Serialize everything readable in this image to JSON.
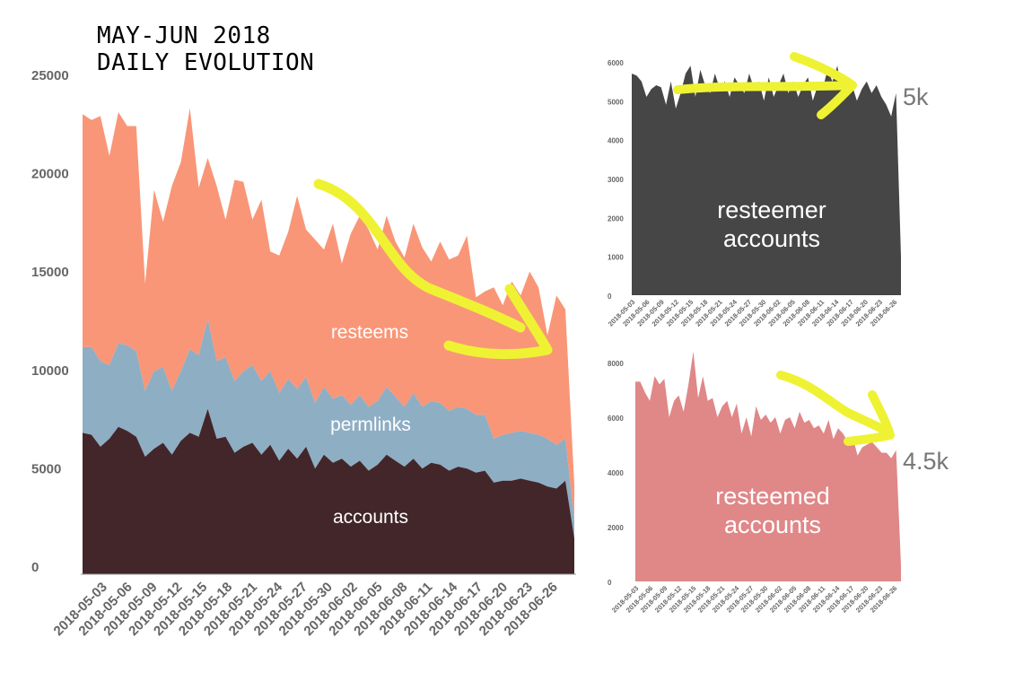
{
  "title": {
    "line1": "MAY-JUN 2018",
    "line2": "DAILY EVOLUTION"
  },
  "colors": {
    "resteems": "#f99677",
    "permlinks": "#8eaec4",
    "accounts": "#42262a",
    "resteemer": "#464646",
    "resteemed": "#e08788",
    "arrow": "#eef233",
    "overlay_text": "#ffffff",
    "side_text": "#777777"
  },
  "main_labels": {
    "resteems": "resteems",
    "permlinks": "permlinks",
    "accounts": "accounts"
  },
  "small_labels": {
    "resteemer_line1": "resteemer",
    "resteemer_line2": "accounts",
    "resteemed_line1": "resteemed",
    "resteemed_line2": "accounts"
  },
  "annotations": {
    "resteemer_value": "5k",
    "resteemed_value": "4.5k"
  },
  "chart_data": [
    {
      "type": "area",
      "stacked": true,
      "title": "",
      "ylim": [
        0,
        25000
      ],
      "y_ticks": [
        "0",
        "5000",
        "10000",
        "15000",
        "20000",
        "25000"
      ],
      "x_tick_labels": [
        "2018-05-03",
        "2018-05-06",
        "2018-05-09",
        "2018-05-12",
        "2018-05-15",
        "2018-05-18",
        "2018-05-21",
        "2018-05-24",
        "2018-05-27",
        "2018-05-30",
        "2018-06-02",
        "2018-06-05",
        "2018-06-08",
        "2018-06-11",
        "2018-06-14",
        "2018-06-17",
        "2018-06-20",
        "2018-06-23",
        "2018-06-26"
      ],
      "x": [
        "2018-05-03",
        "2018-05-04",
        "2018-05-05",
        "2018-05-06",
        "2018-05-07",
        "2018-05-08",
        "2018-05-09",
        "2018-05-10",
        "2018-05-11",
        "2018-05-12",
        "2018-05-13",
        "2018-05-14",
        "2018-05-15",
        "2018-05-16",
        "2018-05-17",
        "2018-05-18",
        "2018-05-19",
        "2018-05-20",
        "2018-05-21",
        "2018-05-22",
        "2018-05-23",
        "2018-05-24",
        "2018-05-25",
        "2018-05-26",
        "2018-05-27",
        "2018-05-28",
        "2018-05-29",
        "2018-05-30",
        "2018-05-31",
        "2018-06-01",
        "2018-06-02",
        "2018-06-03",
        "2018-06-04",
        "2018-06-05",
        "2018-06-06",
        "2018-06-07",
        "2018-06-08",
        "2018-06-09",
        "2018-06-10",
        "2018-06-11",
        "2018-06-12",
        "2018-06-13",
        "2018-06-14",
        "2018-06-15",
        "2018-06-16",
        "2018-06-17",
        "2018-06-18",
        "2018-06-19",
        "2018-06-20",
        "2018-06-21",
        "2018-06-22",
        "2018-06-23",
        "2018-06-24",
        "2018-06-25",
        "2018-06-26",
        "2018-06-27"
      ],
      "series": [
        {
          "name": "accounts",
          "values": [
            7100,
            7000,
            6400,
            6800,
            7400,
            7200,
            6900,
            5900,
            6300,
            6600,
            6000,
            6700,
            7100,
            6900,
            8300,
            6800,
            6900,
            6100,
            6400,
            6600,
            6000,
            6500,
            5700,
            6300,
            5800,
            6400,
            5300,
            6000,
            5600,
            5800,
            5400,
            5700,
            5200,
            5500,
            6000,
            5700,
            5400,
            5800,
            5300,
            5600,
            5500,
            5200,
            5400,
            5300,
            5100,
            5200,
            4600,
            4700,
            4700,
            4800,
            4700,
            4600,
            4400,
            4300,
            4700,
            1800
          ]
        },
        {
          "name": "permlinks",
          "values": [
            11400,
            11400,
            10700,
            10500,
            11600,
            11500,
            11200,
            9200,
            10200,
            10400,
            9200,
            10200,
            11300,
            11000,
            12800,
            10700,
            10900,
            9700,
            10200,
            10500,
            9700,
            10200,
            9100,
            9800,
            9300,
            9900,
            8600,
            9400,
            8800,
            9000,
            8500,
            9000,
            8400,
            8700,
            9400,
            8900,
            8400,
            9100,
            8400,
            8700,
            8600,
            8200,
            8400,
            8300,
            8000,
            8000,
            6800,
            7000,
            7100,
            7200,
            7100,
            7000,
            6800,
            6500,
            6800,
            2700
          ]
        },
        {
          "name": "resteems",
          "values": [
            23100,
            22800,
            23000,
            21000,
            23200,
            22500,
            22500,
            14600,
            19300,
            17700,
            19500,
            20700,
            23400,
            19400,
            20900,
            19500,
            17800,
            19800,
            19700,
            17800,
            18800,
            16200,
            16000,
            17200,
            19000,
            17300,
            16800,
            16300,
            17600,
            15600,
            17100,
            18000,
            17300,
            16300,
            18000,
            16700,
            15900,
            17600,
            16400,
            15700,
            16700,
            15800,
            16000,
            17000,
            13900,
            14200,
            14400,
            13500,
            14700,
            14000,
            15200,
            14400,
            12000,
            14000,
            13300,
            4500
          ]
        }
      ]
    },
    {
      "type": "area",
      "title": "",
      "ylim": [
        0,
        6000
      ],
      "y_ticks": [
        "0",
        "1000",
        "2000",
        "3000",
        "4000",
        "5000",
        "6000"
      ],
      "x_tick_labels": [
        "2018-05-03",
        "2018-05-06",
        "2018-05-09",
        "2018-05-12",
        "2018-05-15",
        "2018-05-18",
        "2018-05-21",
        "2018-05-24",
        "2018-05-27",
        "2018-05-30",
        "2018-06-02",
        "2018-06-05",
        "2018-06-08",
        "2018-06-11",
        "2018-06-14",
        "2018-06-17",
        "2018-06-20",
        "2018-06-23",
        "2018-06-26"
      ],
      "series": [
        {
          "name": "resteemer accounts",
          "values": [
            5700,
            5650,
            5500,
            5100,
            5300,
            5400,
            5350,
            4900,
            5500,
            4800,
            5200,
            5700,
            5900,
            5100,
            5800,
            5400,
            5200,
            5700,
            5300,
            5500,
            5100,
            5600,
            5400,
            5200,
            5700,
            5300,
            5500,
            5000,
            5600,
            5100,
            5400,
            5700,
            5200,
            5500,
            5100,
            5400,
            5600,
            5000,
            5400,
            5300,
            5800,
            5500,
            5900,
            5200,
            5600,
            5400,
            5000,
            5300,
            5500,
            5200,
            5400,
            5100,
            4900,
            4600,
            5200,
            1000
          ]
        }
      ]
    },
    {
      "type": "area",
      "title": "",
      "ylim": [
        0,
        8000
      ],
      "y_ticks": [
        "0",
        "2000",
        "4000",
        "6000",
        "8000"
      ],
      "x_tick_labels": [
        "2018-05-03",
        "2018-05-06",
        "2018-05-09",
        "2018-05-12",
        "2018-05-15",
        "2018-05-18",
        "2018-05-21",
        "2018-05-24",
        "2018-05-27",
        "2018-05-30",
        "2018-06-02",
        "2018-06-05",
        "2018-06-08",
        "2018-06-11",
        "2018-06-14",
        "2018-06-17",
        "2018-06-20",
        "2018-06-23",
        "2018-06-26"
      ],
      "series": [
        {
          "name": "resteemed accounts",
          "values": [
            7300,
            7300,
            6900,
            6600,
            7500,
            7200,
            7400,
            6000,
            6600,
            6800,
            6200,
            7200,
            8400,
            6700,
            7500,
            6600,
            6700,
            6000,
            6400,
            6600,
            6000,
            6500,
            5400,
            6000,
            5300,
            6400,
            5900,
            6100,
            5800,
            6000,
            5400,
            5900,
            6000,
            5600,
            6200,
            5800,
            5900,
            5600,
            5700,
            5400,
            5900,
            5200,
            5600,
            5400,
            5100,
            5300,
            4600,
            4900,
            5000,
            5100,
            4900,
            4700,
            4700,
            4500,
            4800,
            600
          ]
        }
      ]
    }
  ]
}
